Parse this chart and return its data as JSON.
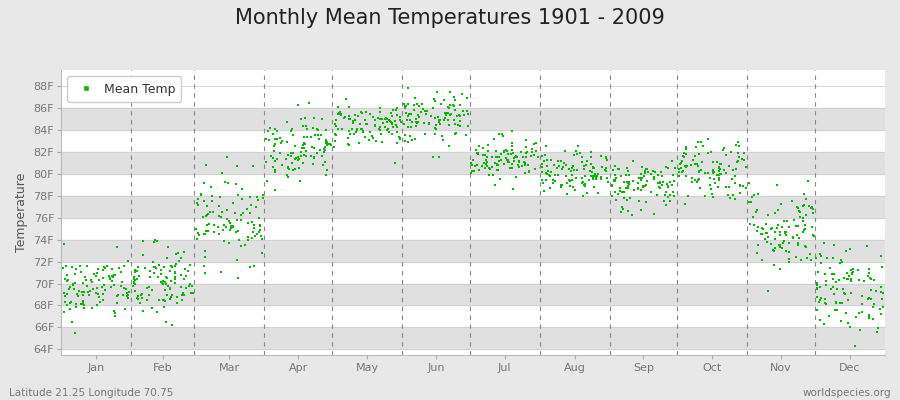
{
  "title": "Monthly Mean Temperatures 1901 - 2009",
  "ylabel": "Temperature",
  "xlabel_labels": [
    "Jan",
    "Feb",
    "Mar",
    "Apr",
    "May",
    "Jun",
    "Jul",
    "Aug",
    "Sep",
    "Oct",
    "Nov",
    "Dec"
  ],
  "ytick_labels": [
    "64F",
    "66F",
    "68F",
    "70F",
    "72F",
    "74F",
    "76F",
    "78F",
    "80F",
    "82F",
    "84F",
    "86F",
    "88F"
  ],
  "ytick_values": [
    64,
    66,
    68,
    70,
    72,
    74,
    76,
    78,
    80,
    82,
    84,
    86,
    88
  ],
  "ylim": [
    63.5,
    89.5
  ],
  "xlim": [
    0,
    365
  ],
  "dot_color": "#00bb00",
  "bg_color": "#e8e8e8",
  "plot_bg_color": "#ffffff",
  "band_color": "#e0e0e0",
  "grid_line_color": "#d0d0d0",
  "dashed_color": "#888888",
  "legend_label": "Mean Temp",
  "footer_left": "Latitude 21.25 Longitude 70.75",
  "footer_right": "worldspecies.org",
  "title_fontsize": 15,
  "axis_label_fontsize": 9,
  "tick_fontsize": 8,
  "footer_fontsize": 7.5,
  "monthly_means": [
    69.5,
    70.0,
    76.0,
    82.5,
    84.5,
    85.0,
    81.5,
    80.0,
    79.0,
    80.5,
    75.0,
    69.5
  ],
  "monthly_std": [
    1.5,
    1.8,
    2.0,
    1.5,
    1.0,
    1.2,
    1.0,
    1.0,
    1.2,
    1.5,
    2.0,
    2.0
  ],
  "monthly_days": [
    31,
    28,
    31,
    30,
    31,
    30,
    31,
    31,
    30,
    31,
    30,
    31
  ],
  "month_starts": [
    0,
    31,
    59,
    90,
    120,
    151,
    181,
    212,
    243,
    273,
    304,
    334
  ],
  "n_years": 109,
  "seed": 42
}
